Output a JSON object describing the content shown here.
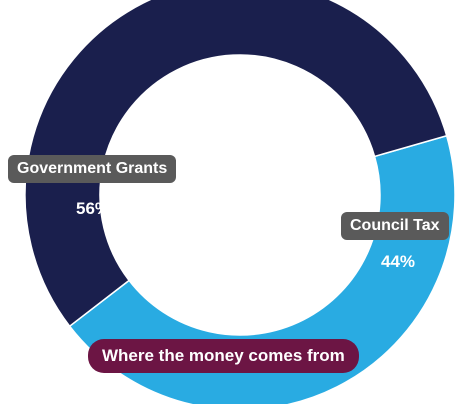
{
  "chart_data": {
    "type": "pie",
    "style": "donut",
    "title": "Where the money comes from",
    "slices": [
      {
        "label": "Government Grants",
        "value": 56,
        "value_label": "56%",
        "color": "#1a1f4d"
      },
      {
        "label": "Council Tax",
        "value": 44,
        "value_label": "44%",
        "color": "#29abe2"
      }
    ]
  }
}
